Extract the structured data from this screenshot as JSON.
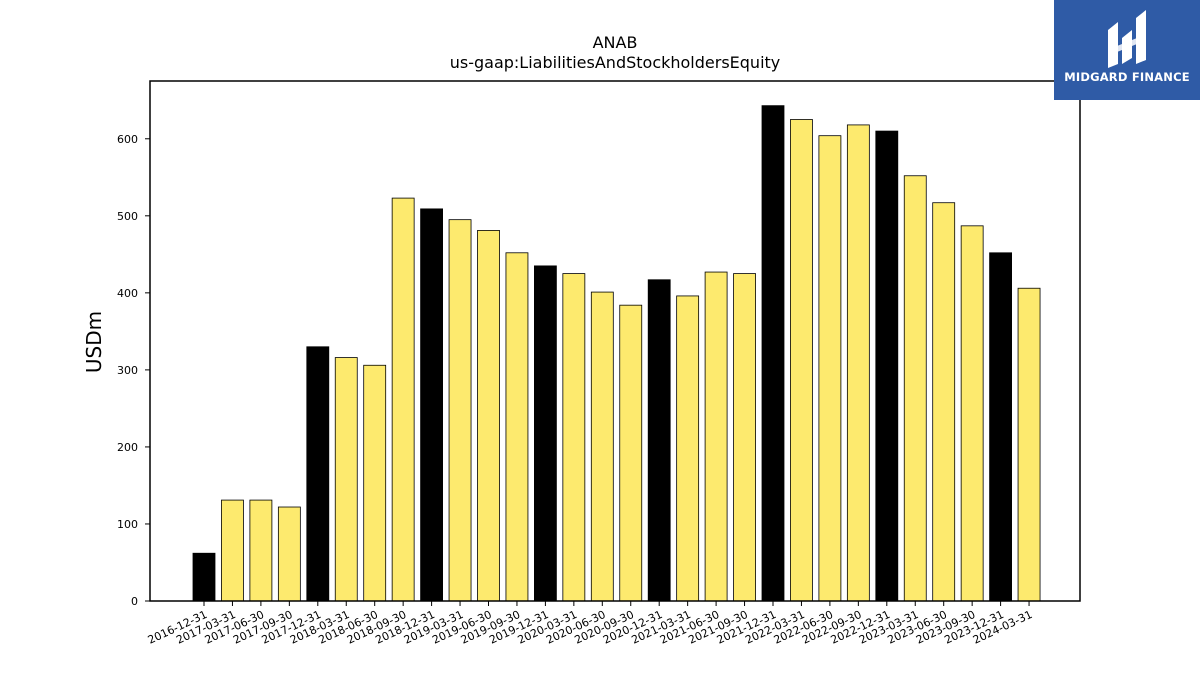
{
  "chart_data": {
    "type": "bar",
    "title": "ANAB",
    "subtitle": "us-gaap:LiabilitiesAndStockholdersEquity",
    "xlabel": "",
    "ylabel": "USDm",
    "ylim": [
      0,
      675
    ],
    "yticks": [
      0,
      100,
      200,
      300,
      400,
      500,
      600
    ],
    "grid": false,
    "colors": {
      "year_end": "#000000",
      "quarter": "#fdea6e"
    },
    "categories": [
      "2016-12-31",
      "2017-03-31",
      "2017-06-30",
      "2017-09-30",
      "2017-12-31",
      "2018-03-31",
      "2018-06-30",
      "2018-09-30",
      "2018-12-31",
      "2019-03-31",
      "2019-06-30",
      "2019-09-30",
      "2019-12-31",
      "2020-03-31",
      "2020-06-30",
      "2020-09-30",
      "2020-12-31",
      "2021-03-31",
      "2021-06-30",
      "2021-09-30",
      "2021-12-31",
      "2022-03-31",
      "2022-06-30",
      "2022-09-30",
      "2022-12-31",
      "2023-03-31",
      "2023-06-30",
      "2023-09-30",
      "2023-12-31",
      "2024-03-31"
    ],
    "values": [
      62,
      131,
      131,
      122,
      330,
      316,
      306,
      523,
      509,
      495,
      481,
      452,
      435,
      425,
      401,
      384,
      417,
      396,
      427,
      425,
      643,
      625,
      604,
      618,
      610,
      552,
      517,
      487,
      452,
      406
    ]
  },
  "logo": {
    "text": "MIDGARD FINANCE",
    "icon": "midgard-logo-icon"
  }
}
